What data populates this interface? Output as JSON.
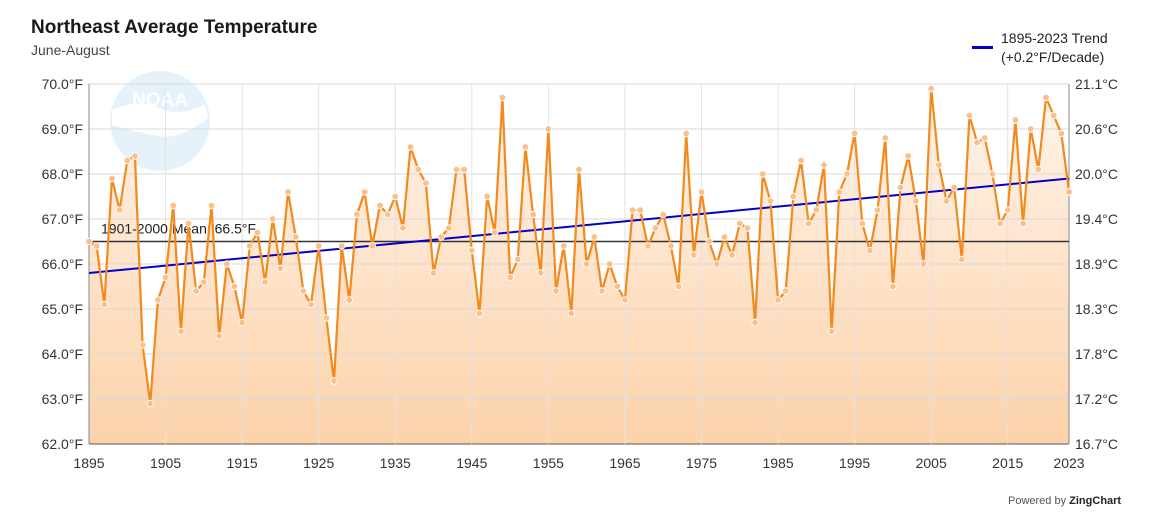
{
  "header": {
    "title": "Northeast Average Temperature",
    "subtitle": "June-August"
  },
  "legend": {
    "line1": "1895-2023 Trend",
    "line2": "(+0.2°F/Decade)"
  },
  "watermark": {
    "text": "NOAA"
  },
  "credit": {
    "prefix": "Powered by ",
    "brand": "ZingChart"
  },
  "colors": {
    "series": "#f28a1e",
    "marker": "#fbc08a",
    "trend": "#0000cc",
    "mean": "#333333",
    "fill_top": "#fff4ea",
    "fill_bottom": "#fcd2aa"
  },
  "chart_data": {
    "type": "line",
    "title": "Northeast Average Temperature",
    "subtitle": "June-August",
    "x_start": 1895,
    "x_end": 2023,
    "ylim": [
      62,
      70
    ],
    "y_ticks": [
      "62.0°F",
      "63.0°F",
      "64.0°F",
      "65.0°F",
      "66.0°F",
      "67.0°F",
      "68.0°F",
      "69.0°F",
      "70.0°F"
    ],
    "y2_ticks": [
      "16.7°C",
      "17.2°C",
      "17.8°C",
      "18.3°C",
      "18.9°C",
      "19.4°C",
      "20.0°C",
      "20.6°C",
      "21.1°C"
    ],
    "x_ticks": [
      "1895",
      "1905",
      "1915",
      "1925",
      "1935",
      "1945",
      "1955",
      "1965",
      "1975",
      "1985",
      "1995",
      "2005",
      "2015",
      "2023"
    ],
    "x_tick_values": [
      1895,
      1905,
      1915,
      1925,
      1935,
      1945,
      1955,
      1965,
      1975,
      1985,
      1995,
      2005,
      2015,
      2023
    ],
    "grid": true,
    "mean": {
      "value": 66.5,
      "label": "1901-2000 Mean: 66.5°F"
    },
    "trend": {
      "name": "1895-2023 Trend",
      "start": 65.8,
      "end": 67.9
    },
    "values": [
      66.5,
      66.4,
      65.1,
      67.9,
      67.2,
      68.3,
      68.4,
      64.2,
      62.9,
      65.2,
      65.7,
      67.3,
      64.5,
      66.9,
      65.4,
      65.6,
      67.3,
      64.4,
      66.0,
      65.5,
      64.7,
      66.4,
      66.7,
      65.6,
      67.0,
      65.9,
      67.6,
      66.6,
      65.4,
      65.1,
      66.4,
      64.8,
      63.4,
      66.4,
      65.2,
      67.1,
      67.6,
      66.4,
      67.3,
      67.1,
      67.5,
      66.8,
      68.6,
      68.1,
      67.8,
      65.8,
      66.6,
      66.8,
      68.1,
      68.1,
      66.3,
      64.9,
      67.5,
      66.7,
      69.7,
      65.7,
      66.1,
      68.6,
      67.1,
      65.8,
      69.0,
      65.4,
      66.4,
      64.9,
      68.1,
      66.0,
      66.6,
      65.4,
      66.0,
      65.5,
      65.2,
      67.2,
      67.2,
      66.4,
      66.8,
      67.1,
      66.4,
      65.5,
      68.9,
      66.2,
      67.6,
      66.5,
      66.0,
      66.6,
      66.2,
      66.9,
      66.8,
      64.7,
      68.0,
      67.4,
      65.2,
      65.4,
      67.5,
      68.3,
      66.9,
      67.2,
      68.2,
      64.5,
      67.6,
      68.0,
      68.9,
      66.9,
      66.3,
      67.2,
      68.8,
      65.5,
      67.7,
      68.4,
      67.4,
      66.0,
      69.9,
      68.2,
      67.4,
      67.7,
      66.1,
      69.3,
      68.7,
      68.8,
      68.0,
      66.9,
      67.2,
      69.2,
      66.9,
      69.0,
      68.1,
      69.7,
      69.3,
      68.9,
      67.6
    ]
  }
}
